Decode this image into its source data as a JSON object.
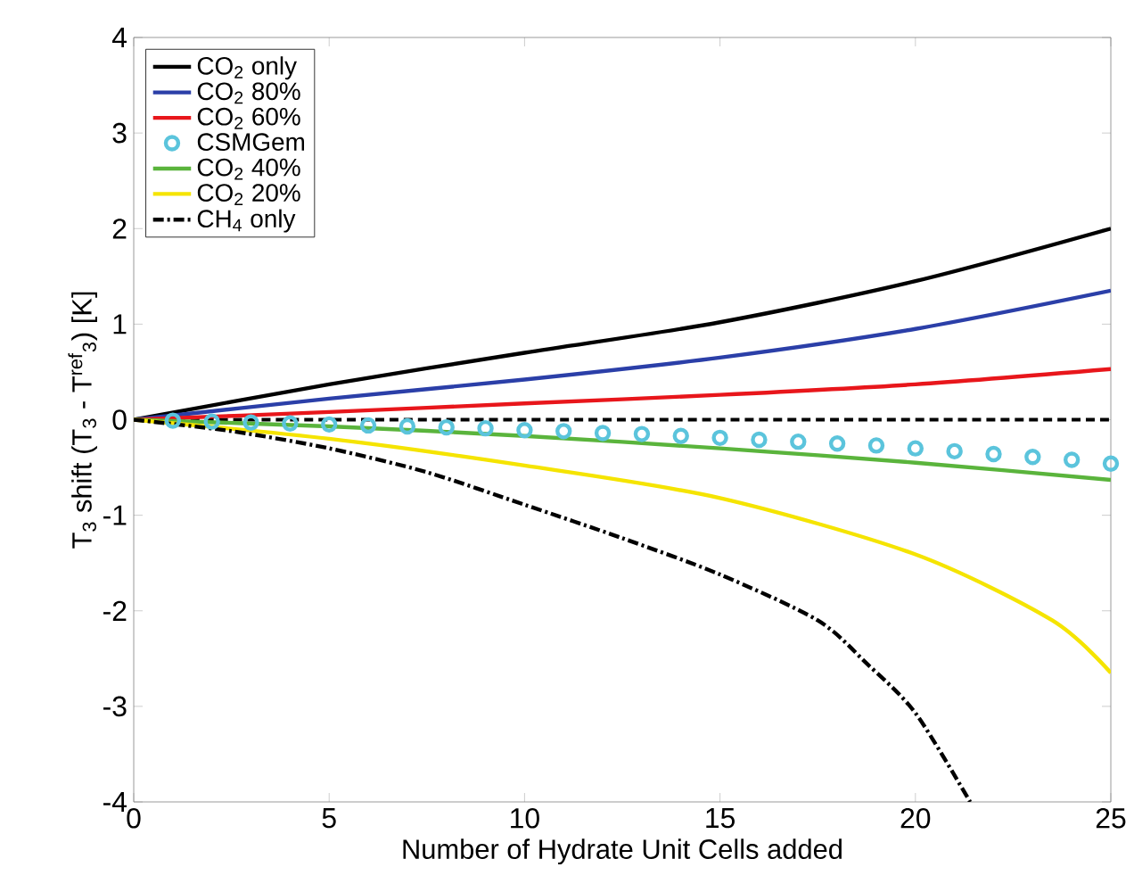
{
  "chart_data": {
    "type": "line",
    "xlabel": "Number of Hydrate Unit Cells added",
    "ylabel": "T$_{3}$ shift  (T$_{3}$ - T$^{ref}$$_{3}$) [K]",
    "xlim": [
      0,
      25
    ],
    "ylim": [
      -4,
      4
    ],
    "xticks": [
      0,
      5,
      10,
      15,
      20,
      25
    ],
    "yticks": [
      -4,
      -3,
      -2,
      -1,
      0,
      1,
      2,
      3,
      4
    ],
    "legend": "top left",
    "grid": false,
    "ref_lines": [
      {
        "axis": "y",
        "value": 0,
        "color": "#000000",
        "line_style": "dashed"
      }
    ],
    "series": [
      {
        "name": "CO$_{2}$ only",
        "color": "#000000",
        "x": [
          0,
          5,
          10,
          15,
          20,
          25
        ],
        "values": [
          0,
          0.37,
          0.7,
          1.02,
          1.45,
          2.0
        ]
      },
      {
        "name": "CO$_{2}$ 80%",
        "color": "#2b3fa8",
        "x": [
          0,
          5,
          10,
          15,
          20,
          25
        ],
        "values": [
          0,
          0.22,
          0.42,
          0.65,
          0.95,
          1.35
        ]
      },
      {
        "name": "CO$_{2}$ 60%",
        "color": "#e8161b",
        "x": [
          0,
          5,
          10,
          15,
          20,
          25
        ],
        "values": [
          0,
          0.08,
          0.17,
          0.26,
          0.37,
          0.53
        ]
      },
      {
        "name": "CSMGem",
        "type": "scatter",
        "marker": "circle",
        "color": "#5bc4dc",
        "x": [
          1,
          2,
          3,
          4,
          5,
          6,
          7,
          8,
          9,
          10,
          11,
          12,
          13,
          14,
          15,
          16,
          17,
          18,
          19,
          20,
          21,
          22,
          23,
          24,
          25
        ],
        "values": [
          -0.01,
          -0.02,
          -0.03,
          -0.04,
          -0.05,
          -0.06,
          -0.07,
          -0.08,
          -0.09,
          -0.11,
          -0.12,
          -0.14,
          -0.15,
          -0.17,
          -0.19,
          -0.21,
          -0.23,
          -0.25,
          -0.27,
          -0.3,
          -0.33,
          -0.36,
          -0.39,
          -0.42,
          -0.46
        ]
      },
      {
        "name": "CO$_{2}$ 40%",
        "color": "#5ab43c",
        "x": [
          0,
          5,
          10,
          15,
          20,
          25
        ],
        "values": [
          0,
          -0.07,
          -0.17,
          -0.3,
          -0.45,
          -0.63
        ]
      },
      {
        "name": "CO$_{2}$ 20%",
        "color": "#f5e400",
        "x": [
          0,
          5,
          10,
          15,
          20,
          23.5,
          25
        ],
        "values": [
          0,
          -0.2,
          -0.48,
          -0.82,
          -1.41,
          -2.1,
          -2.65
        ]
      },
      {
        "name": "CH$_{4}$ only",
        "color": "#000000",
        "line_style": "dashdot",
        "x": [
          0,
          2.5,
          5,
          7.5,
          10,
          12.5,
          15,
          17.5,
          18.75,
          20,
          21.4
        ],
        "values": [
          0,
          -0.12,
          -0.3,
          -0.55,
          -0.89,
          -1.24,
          -1.62,
          -2.1,
          -2.55,
          -3.07,
          -4.0
        ]
      }
    ]
  }
}
